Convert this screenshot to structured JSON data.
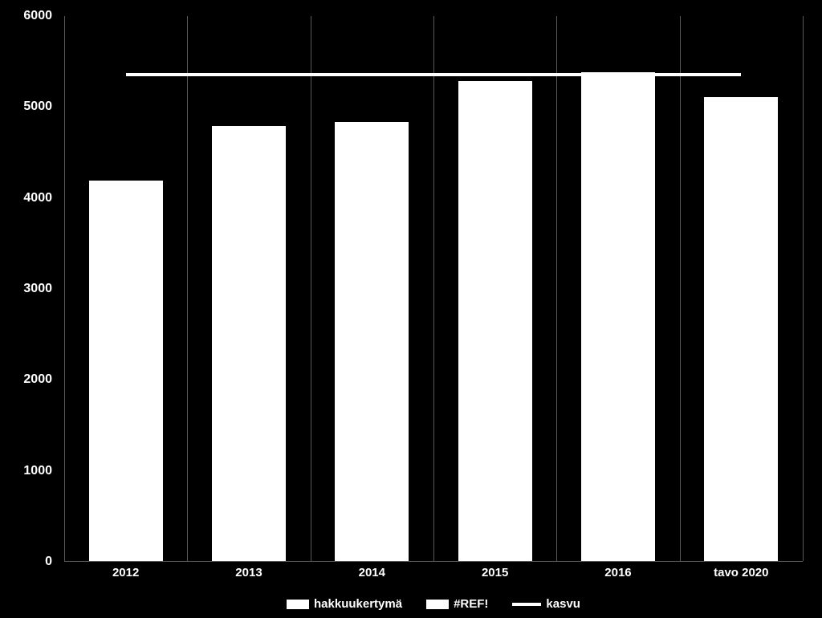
{
  "chart": {
    "type": "bar",
    "background_color": "#000000",
    "bar_color": "#ffffff",
    "text_color": "#ffffff",
    "gridline_color": "#595959",
    "tick_fontsize": 16,
    "tick_fontweight": "bold",
    "ylim": [
      0,
      6000
    ],
    "ytick_step": 1000,
    "yticks": [
      0,
      1000,
      2000,
      3000,
      4000,
      5000,
      6000
    ],
    "categories": [
      "2012",
      "2013",
      "2014",
      "2015",
      "2016",
      "tavo 2020"
    ],
    "values": [
      4180,
      4780,
      4830,
      5280,
      5370,
      5100
    ],
    "kasvu_line_value": 5370,
    "kasvu_line_width": 4,
    "kasvu_line_color": "#ffffff",
    "bar_width_pct": 60,
    "legend": {
      "items": [
        {
          "type": "bar",
          "label": "hakkuukertymä"
        },
        {
          "type": "bar",
          "label": "#REF!"
        },
        {
          "type": "line",
          "label": "kasvu"
        }
      ],
      "fontsize": 15
    }
  }
}
